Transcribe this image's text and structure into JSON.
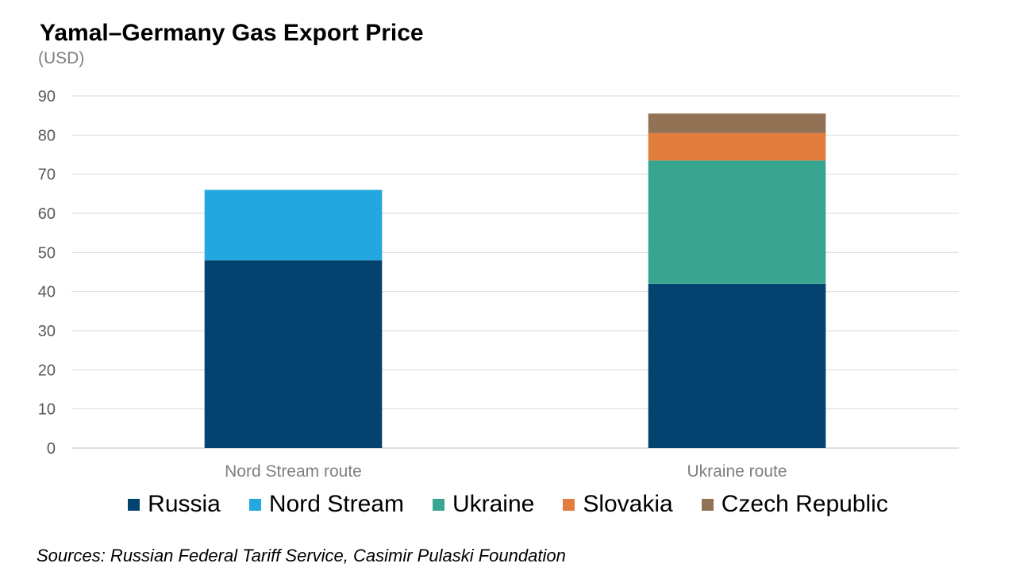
{
  "chart_data": {
    "type": "bar",
    "stacked": true,
    "title": "Yamal–Germany Gas Export Price",
    "subtitle": "(USD)",
    "categories": [
      "Nord Stream route",
      "Ukraine route"
    ],
    "series": [
      {
        "name": "Russia",
        "color": "#044270",
        "values": [
          48,
          42
        ]
      },
      {
        "name": "Nord Stream",
        "color": "#22a7e0",
        "values": [
          18,
          0
        ]
      },
      {
        "name": "Ukraine",
        "color": "#38a590",
        "values": [
          0,
          31.5
        ]
      },
      {
        "name": "Slovakia",
        "color": "#e27d3e",
        "values": [
          0,
          7
        ]
      },
      {
        "name": "Czech Republic",
        "color": "#917254",
        "values": [
          0,
          5
        ]
      }
    ],
    "ylim": [
      0,
      90
    ],
    "yticks": [
      0,
      10,
      20,
      30,
      40,
      50,
      60,
      70,
      80,
      90
    ],
    "grid": true,
    "legend": "bottom"
  },
  "source": "Sources: Russian Federal Tariff Service, Casimir Pulaski Foundation"
}
